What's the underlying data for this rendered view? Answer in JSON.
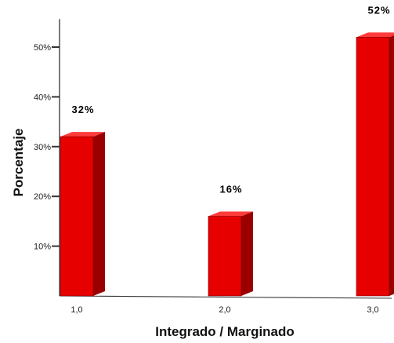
{
  "chart_data": {
    "type": "bar",
    "categories": [
      "1,0",
      "2,0",
      "3,0"
    ],
    "values": [
      32,
      16,
      52
    ],
    "value_labels": [
      "32%",
      "16%",
      "52%"
    ],
    "ylim": [
      0,
      55
    ],
    "yticks": [
      10,
      20,
      30,
      40,
      50
    ],
    "ytick_labels": [
      "10%",
      "20%",
      "30%",
      "40%",
      "50%"
    ],
    "xlabel": "Integrado / Marginado",
    "ylabel": "Porcentaje",
    "title": "",
    "grid": false,
    "legend": "none",
    "style": "3d-bar"
  },
  "colors": {
    "bar_front": "#e60000",
    "bar_side": "#9a0000",
    "bar_top": "#ff3b3b",
    "axis": "#333333"
  }
}
